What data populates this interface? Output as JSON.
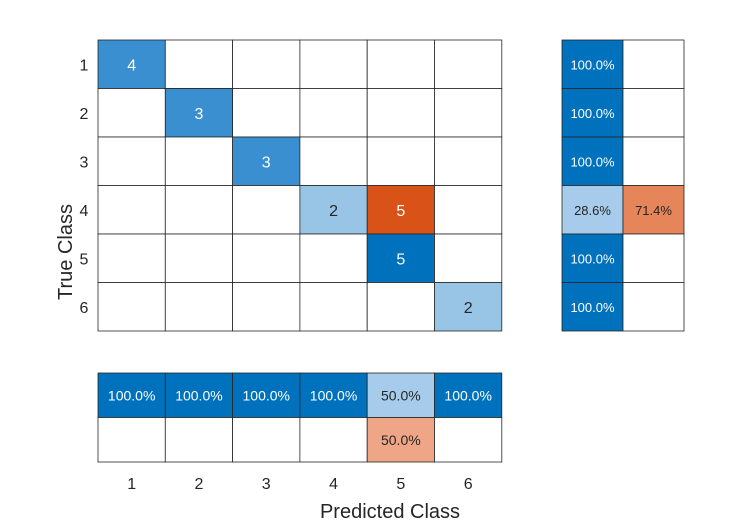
{
  "chart_data": {
    "type": "heatmap",
    "xlabel": "Predicted Class",
    "ylabel": "True Class",
    "classes": [
      "1",
      "2",
      "3",
      "4",
      "5",
      "6"
    ],
    "matrix": [
      [
        4,
        0,
        0,
        0,
        0,
        0
      ],
      [
        0,
        3,
        0,
        0,
        0,
        0
      ],
      [
        0,
        0,
        3,
        0,
        0,
        0
      ],
      [
        0,
        0,
        0,
        2,
        5,
        0
      ],
      [
        0,
        0,
        0,
        0,
        5,
        0
      ],
      [
        0,
        0,
        0,
        0,
        0,
        2
      ]
    ],
    "row_summary": [
      [
        "100.0%",
        ""
      ],
      [
        "100.0%",
        ""
      ],
      [
        "100.0%",
        ""
      ],
      [
        "28.6%",
        "71.4%"
      ],
      [
        "100.0%",
        ""
      ],
      [
        "100.0%",
        ""
      ]
    ],
    "column_summary": [
      [
        "100.0%",
        "100.0%",
        "100.0%",
        "100.0%",
        "50.0%",
        "100.0%"
      ],
      [
        "",
        "",
        "",
        "",
        "50.0%",
        ""
      ]
    ],
    "colors": {
      "diag_high": "#0072BD",
      "diag_mid": "#3A8FD0",
      "diag_low": "#98C5E6",
      "off_diag": "#D95319",
      "row_correct": "#0072BD",
      "row_correct_light": "#A7CCEB",
      "row_wrong": "#E6845A",
      "col_correct": "#0072BD",
      "col_correct_light": "#A7CCEB",
      "col_wrong": "#EFA686",
      "grid": "#262626",
      "text_dark": "#262626",
      "text_light": "#ffffff"
    }
  }
}
